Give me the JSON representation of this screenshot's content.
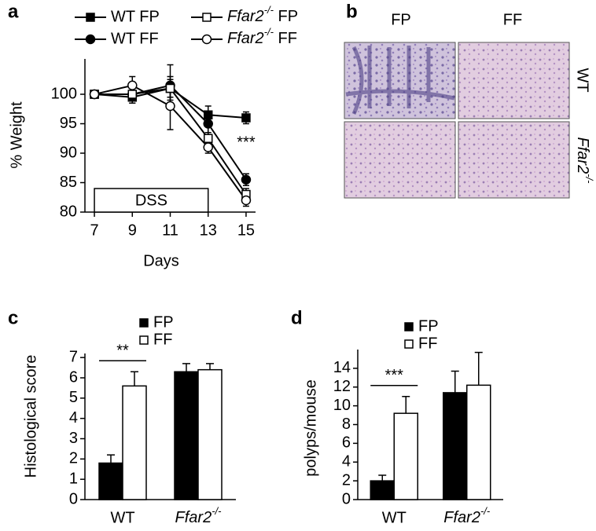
{
  "chart_data": [
    {
      "type": "line",
      "panel_label": "a",
      "y_label": "% Weight",
      "x_label": "Days",
      "x": [
        7,
        9,
        11,
        13,
        15
      ],
      "xlim": [
        6.5,
        15.5
      ],
      "xticks": [
        7,
        9,
        11,
        13,
        15
      ],
      "ylim": [
        80,
        106
      ],
      "yticks": [
        80,
        85,
        90,
        95,
        100
      ],
      "grid": false,
      "shaded_range": {
        "label": "DSS",
        "x": [
          7,
          13
        ]
      },
      "annotation": "***",
      "series": [
        {
          "name": "WT FP",
          "marker": "square",
          "color": "#000000",
          "values": [
            100,
            99.5,
            101,
            96.5,
            96
          ],
          "errors": [
            0.3,
            1,
            2,
            1.5,
            1
          ]
        },
        {
          "name": "WT FF",
          "marker": "circle",
          "color": "#000000",
          "values": [
            100,
            100,
            101.5,
            95,
            85.5
          ],
          "errors": [
            0.3,
            1.5,
            3.5,
            1.5,
            1
          ]
        },
        {
          "name": "Ffar2-/- FP",
          "marker": "square",
          "color": "#ffffff",
          "values": [
            100,
            100,
            101,
            92.5,
            83
          ],
          "errors": [
            0.3,
            1,
            1.5,
            2,
            1
          ]
        },
        {
          "name": "Ffar2-/- FF",
          "marker": "circle",
          "color": "#ffffff",
          "values": [
            100,
            101.5,
            98,
            91,
            82
          ],
          "errors": [
            0.3,
            1.5,
            4,
            1,
            1
          ]
        }
      ]
    },
    {
      "type": "bar",
      "panel_label": "c",
      "y_label": "Histological score",
      "categories": [
        "WT",
        "Ffar2-/-"
      ],
      "ylim": [
        0,
        7.2
      ],
      "yticks": [
        0,
        1,
        2,
        3,
        4,
        5,
        6,
        7
      ],
      "grid": false,
      "annotation": "**",
      "series": [
        {
          "name": "FP",
          "color": "#000000",
          "values": [
            1.8,
            6.3
          ],
          "errors": [
            0.4,
            0.4
          ]
        },
        {
          "name": "FF",
          "color": "#ffffff",
          "values": [
            5.6,
            6.4
          ],
          "errors": [
            0.7,
            0.3
          ]
        }
      ]
    },
    {
      "type": "bar",
      "panel_label": "d",
      "y_label": "polyps/mouse",
      "categories": [
        "WT",
        "Ffar2-/-"
      ],
      "ylim": [
        0,
        16
      ],
      "yticks": [
        0,
        2,
        4,
        6,
        8,
        10,
        12,
        14
      ],
      "grid": false,
      "annotation": "***",
      "series": [
        {
          "name": "FP",
          "color": "#000000",
          "values": [
            2,
            11.4
          ],
          "errors": [
            0.6,
            2.3
          ]
        },
        {
          "name": "FF",
          "color": "#ffffff",
          "values": [
            9.2,
            12.2
          ],
          "errors": [
            1.8,
            3.5
          ]
        }
      ]
    }
  ],
  "image_panel": {
    "panel_label": "b",
    "columns": [
      "FP",
      "FF"
    ],
    "rows": [
      "WT",
      "Ffar2-/-"
    ]
  }
}
